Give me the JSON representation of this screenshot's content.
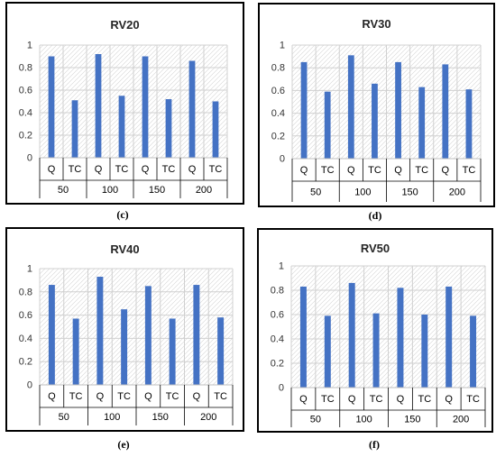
{
  "chart_data": [
    {
      "type": "bar",
      "title": "RV20",
      "caption": "(c)",
      "categories": [
        "Q",
        "TC",
        "Q",
        "TC",
        "Q",
        "TC",
        "Q",
        "TC"
      ],
      "groups": [
        "50",
        "100",
        "150",
        "200"
      ],
      "values": [
        0.9,
        0.51,
        0.92,
        0.55,
        0.9,
        0.52,
        0.86,
        0.5
      ],
      "ylim": [
        0,
        1
      ],
      "yticks": [
        "0",
        "0.2",
        "0.4",
        "0.6",
        "0.8",
        "1"
      ],
      "bar_color": "#4472C4"
    },
    {
      "type": "bar",
      "title": "RV30",
      "caption": "(d)",
      "categories": [
        "Q",
        "TC",
        "Q",
        "TC",
        "Q",
        "TC",
        "Q",
        "TC"
      ],
      "groups": [
        "50",
        "100",
        "150",
        "200"
      ],
      "values": [
        0.85,
        0.59,
        0.91,
        0.66,
        0.85,
        0.63,
        0.83,
        0.61
      ],
      "ylim": [
        0,
        1
      ],
      "yticks": [
        "0",
        "0.2",
        "0.4",
        "0.6",
        "0.8",
        "1"
      ],
      "bar_color": "#4472C4"
    },
    {
      "type": "bar",
      "title": "RV40",
      "caption": "(e)",
      "categories": [
        "Q",
        "TC",
        "Q",
        "TC",
        "Q",
        "TC",
        "Q",
        "TC"
      ],
      "groups": [
        "50",
        "100",
        "150",
        "200"
      ],
      "values": [
        0.86,
        0.57,
        0.93,
        0.65,
        0.85,
        0.57,
        0.86,
        0.58
      ],
      "ylim": [
        0,
        1
      ],
      "yticks": [
        "0",
        "0.2",
        "0.4",
        "0.6",
        "0.8",
        "1"
      ],
      "bar_color": "#4472C4"
    },
    {
      "type": "bar",
      "title": "RV50",
      "caption": "(f)",
      "categories": [
        "Q",
        "TC",
        "Q",
        "TC",
        "Q",
        "TC",
        "Q",
        "TC"
      ],
      "groups": [
        "50",
        "100",
        "150",
        "200"
      ],
      "values": [
        0.83,
        0.59,
        0.86,
        0.61,
        0.82,
        0.6,
        0.83,
        0.59
      ],
      "ylim": [
        0,
        1
      ],
      "yticks": [
        "0",
        "0.2",
        "0.4",
        "0.6",
        "0.8",
        "1"
      ],
      "bar_color": "#4472C4"
    }
  ]
}
